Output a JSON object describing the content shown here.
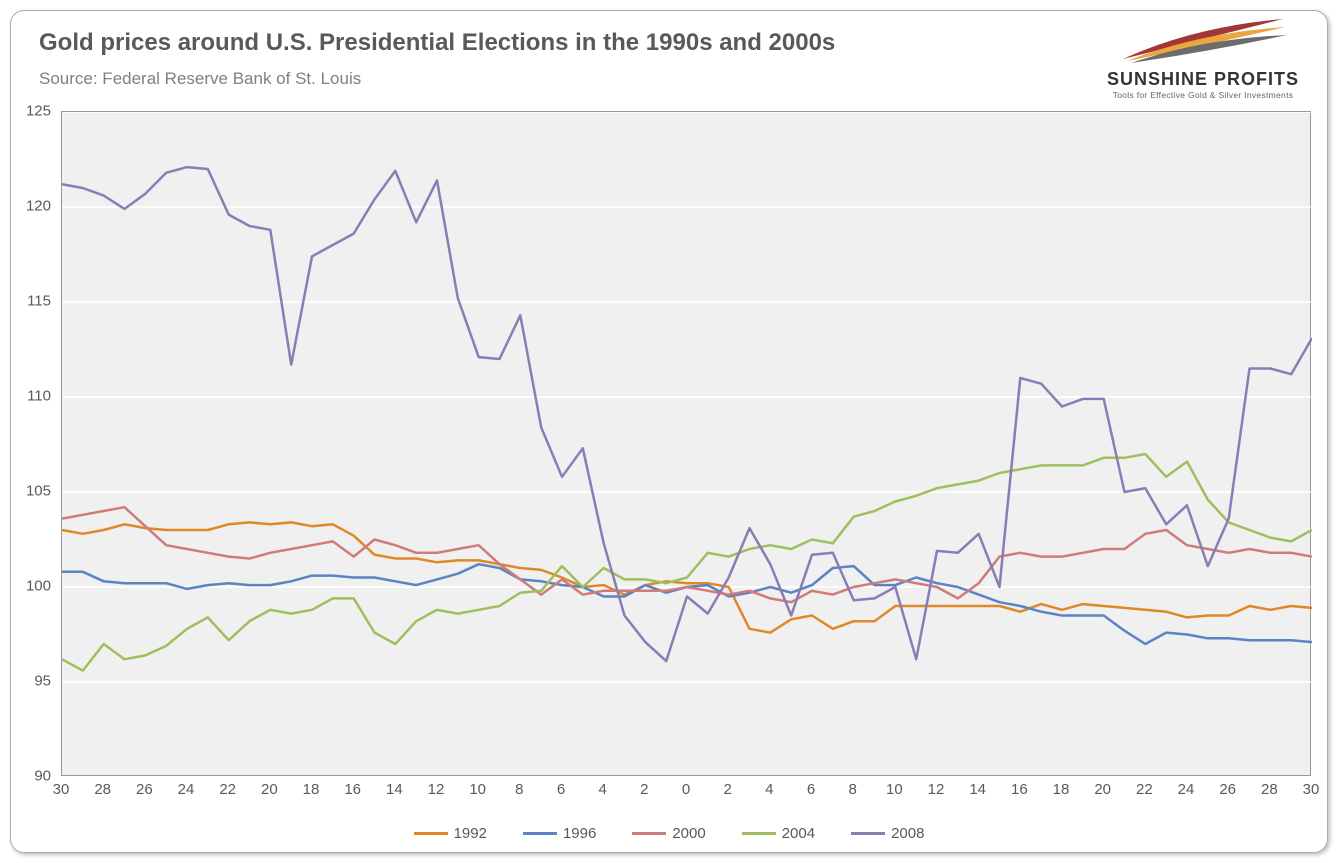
{
  "chart": {
    "type": "line",
    "title": "Gold prices around U.S. Presidential Elections in the 1990s and 2000s",
    "subtitle": "Source: Federal Reserve Bank of St. Louis",
    "title_color": "#595959",
    "title_fontsize": 24,
    "subtitle_color": "#808080",
    "subtitle_fontsize": 17,
    "background_color": "#ffffff",
    "plot_background": "#f0f0f0",
    "grid_color": "#ffffff",
    "border_color": "#999999",
    "ylim": [
      90,
      125
    ],
    "ytick_step": 5,
    "yticks": [
      90,
      95,
      100,
      105,
      110,
      115,
      120,
      125
    ],
    "xlabels": [
      "30",
      "28",
      "26",
      "24",
      "22",
      "20",
      "18",
      "16",
      "14",
      "12",
      "10",
      "8",
      "6",
      "4",
      "2",
      "0",
      "2",
      "4",
      "6",
      "8",
      "10",
      "12",
      "14",
      "16",
      "18",
      "20",
      "22",
      "24",
      "26",
      "28",
      "30"
    ],
    "line_width": 2.5,
    "series": [
      {
        "name": "1992",
        "color": "#e08828",
        "values": [
          103.0,
          102.8,
          103.0,
          103.3,
          103.1,
          103.0,
          103.0,
          103.0,
          103.3,
          103.4,
          103.3,
          103.4,
          103.2,
          103.3,
          102.7,
          101.7,
          101.5,
          101.5,
          101.3,
          101.4,
          101.4,
          101.2,
          101.0,
          100.9,
          100.5,
          100.0,
          100.1,
          99.6,
          100.1,
          100.3,
          100.2,
          100.2,
          100.0,
          97.8,
          97.6,
          98.3,
          98.5,
          97.8,
          98.2,
          98.2,
          99.0,
          99.0,
          99.0,
          99.0,
          99.0,
          99.0,
          98.7,
          99.1,
          98.8,
          99.1,
          99.0,
          98.9,
          98.8,
          98.7,
          98.4,
          98.5,
          98.5,
          99.0,
          98.8,
          99.0,
          98.9
        ]
      },
      {
        "name": "1996",
        "color": "#5a84c4",
        "values": [
          100.8,
          100.8,
          100.3,
          100.2,
          100.2,
          100.2,
          99.9,
          100.1,
          100.2,
          100.1,
          100.1,
          100.3,
          100.6,
          100.6,
          100.5,
          100.5,
          100.3,
          100.1,
          100.4,
          100.7,
          101.2,
          101.0,
          100.4,
          100.3,
          100.1,
          100.0,
          99.5,
          99.5,
          100.1,
          99.7,
          100.0,
          100.1,
          99.5,
          99.7,
          100.0,
          99.7,
          100.1,
          101.0,
          101.1,
          100.1,
          100.1,
          100.5,
          100.2,
          100.0,
          99.6,
          99.2,
          99.0,
          98.7,
          98.5,
          98.5,
          98.5,
          97.7,
          97.0,
          97.6,
          97.5,
          97.3,
          97.3,
          97.2,
          97.2,
          97.2,
          97.1
        ]
      },
      {
        "name": "2000",
        "color": "#cf7b7b",
        "values": [
          103.6,
          103.8,
          104.0,
          104.2,
          103.2,
          102.2,
          102.0,
          101.8,
          101.6,
          101.5,
          101.8,
          102.0,
          102.2,
          102.4,
          101.6,
          102.5,
          102.2,
          101.8,
          101.8,
          102.0,
          102.2,
          101.2,
          100.4,
          99.6,
          100.4,
          99.6,
          99.8,
          99.8,
          99.8,
          99.8,
          100.0,
          99.8,
          99.6,
          99.8,
          99.4,
          99.2,
          99.8,
          99.6,
          100.0,
          100.2,
          100.4,
          100.2,
          100.0,
          99.4,
          100.2,
          101.6,
          101.8,
          101.6,
          101.6,
          101.8,
          102.0,
          102.0,
          102.8,
          103.0,
          102.2,
          102.0,
          101.8,
          102.0,
          101.8,
          101.8,
          101.6
        ]
      },
      {
        "name": "2004",
        "color": "#9fbf5f",
        "values": [
          96.2,
          95.6,
          97.0,
          96.2,
          96.4,
          96.9,
          97.8,
          98.4,
          97.2,
          98.2,
          98.8,
          98.6,
          98.8,
          99.4,
          99.4,
          97.6,
          97.0,
          98.2,
          98.8,
          98.6,
          98.8,
          99.0,
          99.7,
          99.8,
          101.1,
          100.0,
          101.0,
          100.4,
          100.4,
          100.2,
          100.5,
          101.8,
          101.6,
          102.0,
          102.2,
          102.0,
          102.5,
          102.3,
          103.7,
          104.0,
          104.5,
          104.8,
          105.2,
          105.4,
          105.6,
          106.0,
          106.2,
          106.4,
          106.4,
          106.4,
          106.8,
          106.8,
          107.0,
          105.8,
          106.6,
          104.6,
          103.4,
          103.0,
          102.6,
          102.4,
          103.0
        ]
      },
      {
        "name": "2008",
        "color": "#8a7db5",
        "values": [
          121.2,
          121.0,
          120.6,
          119.9,
          120.7,
          121.8,
          122.1,
          122.0,
          119.6,
          119.0,
          118.8,
          111.7,
          117.4,
          118.0,
          118.6,
          120.4,
          121.9,
          119.2,
          121.4,
          115.2,
          112.1,
          112.0,
          114.3,
          108.4,
          105.8,
          107.3,
          102.3,
          98.5,
          97.1,
          96.1,
          99.5,
          98.6,
          100.5,
          103.1,
          101.2,
          98.5,
          101.7,
          101.8,
          99.3,
          99.4,
          100.0,
          96.2,
          101.9,
          101.8,
          102.8,
          100.0,
          111.0,
          110.7,
          109.5,
          109.9,
          109.9,
          105.0,
          105.2,
          103.3,
          104.3,
          101.1,
          103.6,
          111.5,
          111.5,
          111.2,
          113.1
        ]
      }
    ]
  },
  "logo": {
    "brand": "SUNSHINE PROFITS",
    "tagline": "Tools for Effective Gold & Silver Investments",
    "swoosh_colors": [
      "#9e2b2b",
      "#e8a23a",
      "#5c5c5c"
    ]
  }
}
